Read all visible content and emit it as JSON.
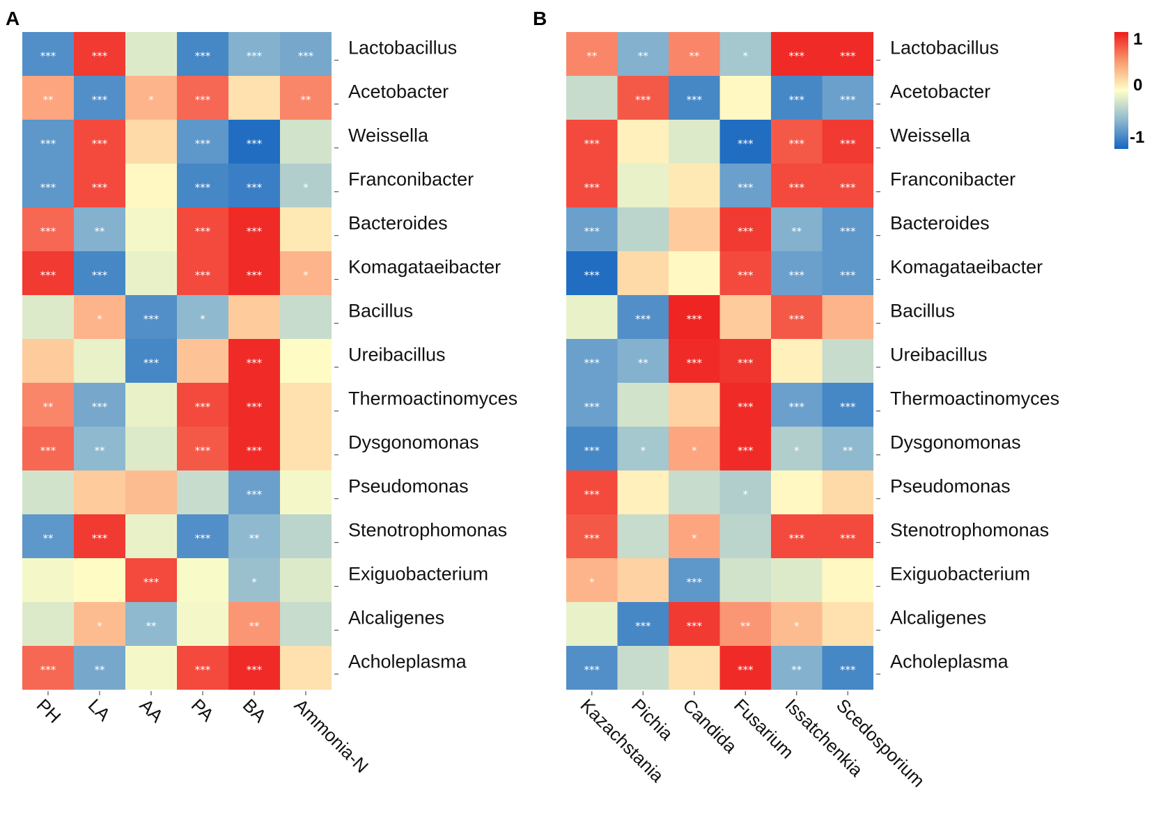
{
  "chart_data": [
    {
      "type": "heatmap",
      "panel": "A",
      "columns": [
        "PH",
        "LA",
        "AA",
        "PA",
        "BA",
        "Ammonia-N"
      ],
      "rows": [
        "Lactobacillus",
        "Acetobacter",
        "Weissella",
        "Franconibacter",
        "Bacteroides",
        "Komagataeibacter",
        "Bacillus",
        "Ureibacillus",
        "Thermoactinomyces",
        "Dysgonomonas",
        "Pseudomonas",
        "Stenotrophomonas",
        "Exiguobacterium",
        "Alcaligenes",
        "Acholeplasma"
      ],
      "values": [
        [
          -0.75,
          0.9,
          -0.15,
          -0.8,
          -0.55,
          -0.6
        ],
        [
          0.55,
          -0.75,
          0.5,
          0.75,
          0.2,
          0.65
        ],
        [
          -0.7,
          0.85,
          0.25,
          -0.7,
          -0.95,
          -0.2
        ],
        [
          -0.7,
          0.85,
          0.05,
          -0.8,
          -0.85,
          -0.35
        ],
        [
          0.75,
          -0.55,
          -0.05,
          0.85,
          0.95,
          0.15
        ],
        [
          0.9,
          -0.8,
          -0.1,
          0.85,
          0.95,
          0.5
        ],
        [
          -0.15,
          0.5,
          -0.75,
          -0.5,
          0.35,
          -0.25
        ],
        [
          0.35,
          -0.1,
          -0.8,
          0.4,
          0.95,
          0.03
        ],
        [
          0.65,
          -0.6,
          -0.1,
          0.85,
          0.95,
          0.2
        ],
        [
          0.75,
          -0.5,
          -0.15,
          0.8,
          0.95,
          0.2
        ],
        [
          -0.2,
          0.35,
          0.45,
          -0.25,
          -0.65,
          -0.05
        ],
        [
          -0.7,
          0.9,
          -0.1,
          -0.75,
          -0.5,
          -0.3
        ],
        [
          -0.05,
          0.03,
          0.85,
          -0.03,
          -0.45,
          -0.15
        ],
        [
          -0.15,
          0.45,
          -0.5,
          -0.05,
          0.6,
          -0.25
        ],
        [
          0.75,
          -0.6,
          -0.05,
          0.85,
          0.95,
          0.2
        ]
      ],
      "significance": [
        [
          "***",
          "***",
          "",
          "***",
          "***",
          "***"
        ],
        [
          "**",
          "***",
          "*",
          "***",
          "",
          "**"
        ],
        [
          "***",
          "***",
          "",
          "***",
          "***",
          ""
        ],
        [
          "***",
          "***",
          "",
          "***",
          "***",
          "*"
        ],
        [
          "***",
          "**",
          "",
          "***",
          "***",
          ""
        ],
        [
          "***",
          "***",
          "",
          "***",
          "***",
          "*"
        ],
        [
          "",
          "*",
          "***",
          "*",
          "",
          ""
        ],
        [
          "",
          "",
          "***",
          "",
          "***",
          ""
        ],
        [
          "**",
          "***",
          "",
          "***",
          "***",
          ""
        ],
        [
          "***",
          "**",
          "",
          "***",
          "***",
          ""
        ],
        [
          "",
          "",
          "",
          "",
          "***",
          ""
        ],
        [
          "**",
          "***",
          "",
          "***",
          "**",
          ""
        ],
        [
          "",
          "",
          "***",
          "",
          "*",
          ""
        ],
        [
          "",
          "*",
          "**",
          "",
          "**",
          ""
        ],
        [
          "***",
          "**",
          "",
          "***",
          "***",
          ""
        ]
      ]
    },
    {
      "type": "heatmap",
      "panel": "B",
      "columns": [
        "Kazachstania",
        "Pichia",
        "Candida",
        "Fusarium",
        "Issatchenkia",
        "Scedosporium"
      ],
      "rows": [
        "Lactobacillus",
        "Acetobacter",
        "Weissella",
        "Franconibacter",
        "Bacteroides",
        "Komagataeibacter",
        "Bacillus",
        "Ureibacillus",
        "Thermoactinomyces",
        "Dysgonomonas",
        "Pseudomonas",
        "Stenotrophomonas",
        "Exiguobacterium",
        "Alcaligenes",
        "Acholeplasma"
      ],
      "values": [
        [
          0.65,
          -0.55,
          0.65,
          -0.4,
          0.95,
          0.95
        ],
        [
          -0.25,
          0.8,
          -0.8,
          0.05,
          -0.8,
          -0.65
        ],
        [
          0.85,
          0.1,
          -0.15,
          -0.95,
          0.8,
          0.9
        ],
        [
          0.85,
          -0.1,
          0.15,
          -0.65,
          0.85,
          0.85
        ],
        [
          -0.65,
          -0.3,
          0.35,
          0.9,
          -0.55,
          -0.7
        ],
        [
          -0.95,
          0.25,
          0.05,
          0.85,
          -0.65,
          -0.7
        ],
        [
          -0.1,
          -0.75,
          0.97,
          0.35,
          0.8,
          0.5
        ],
        [
          -0.65,
          -0.55,
          0.95,
          0.92,
          0.1,
          -0.25
        ],
        [
          -0.65,
          -0.2,
          0.3,
          0.95,
          -0.65,
          -0.8
        ],
        [
          -0.8,
          -0.4,
          0.55,
          0.95,
          -0.35,
          -0.5
        ],
        [
          0.85,
          0.1,
          -0.25,
          -0.35,
          0.05,
          0.25
        ],
        [
          0.8,
          -0.25,
          0.55,
          -0.3,
          0.85,
          0.85
        ],
        [
          0.5,
          0.3,
          -0.7,
          -0.2,
          -0.15,
          0.05
        ],
        [
          -0.1,
          -0.8,
          0.9,
          0.6,
          0.45,
          0.2
        ],
        [
          -0.75,
          -0.25,
          0.2,
          0.95,
          -0.55,
          -0.8
        ]
      ],
      "significance": [
        [
          "**",
          "**",
          "**",
          "*",
          "***",
          "***"
        ],
        [
          "",
          "***",
          "***",
          "",
          "***",
          "***"
        ],
        [
          "***",
          "",
          "",
          "***",
          "***",
          "***"
        ],
        [
          "***",
          "",
          "",
          "***",
          "***",
          "***"
        ],
        [
          "***",
          "",
          "",
          "***",
          "**",
          "***"
        ],
        [
          "***",
          "",
          "",
          "***",
          "***",
          "***"
        ],
        [
          "",
          "***",
          "***",
          "",
          "***",
          ""
        ],
        [
          "***",
          "**",
          "***",
          "***",
          "",
          ""
        ],
        [
          "***",
          "",
          "",
          "***",
          "***",
          "***"
        ],
        [
          "***",
          "*",
          "*",
          "***",
          "*",
          "**"
        ],
        [
          "***",
          "",
          "",
          "*",
          "",
          ""
        ],
        [
          "***",
          "",
          "*",
          "",
          "***",
          "***"
        ],
        [
          "*",
          "",
          "***",
          "",
          "",
          ""
        ],
        [
          "",
          "***",
          "***",
          "**",
          "*",
          ""
        ],
        [
          "***",
          "",
          "",
          "***",
          "**",
          "***"
        ]
      ]
    }
  ],
  "legend": {
    "max_label": "1",
    "mid_label": "0",
    "min_label": "-1",
    "colors": [
      "#d7191c",
      "#fdae61",
      "#ffffbf",
      "#abd9e9",
      "#2c7bb6"
    ]
  },
  "colors": {
    "neg": "#1565c0",
    "neg_mid": "#8fb9cf",
    "neutral": "#ffffc8",
    "pos_mid": "#fdb48a",
    "pos": "#ee1c1c"
  }
}
